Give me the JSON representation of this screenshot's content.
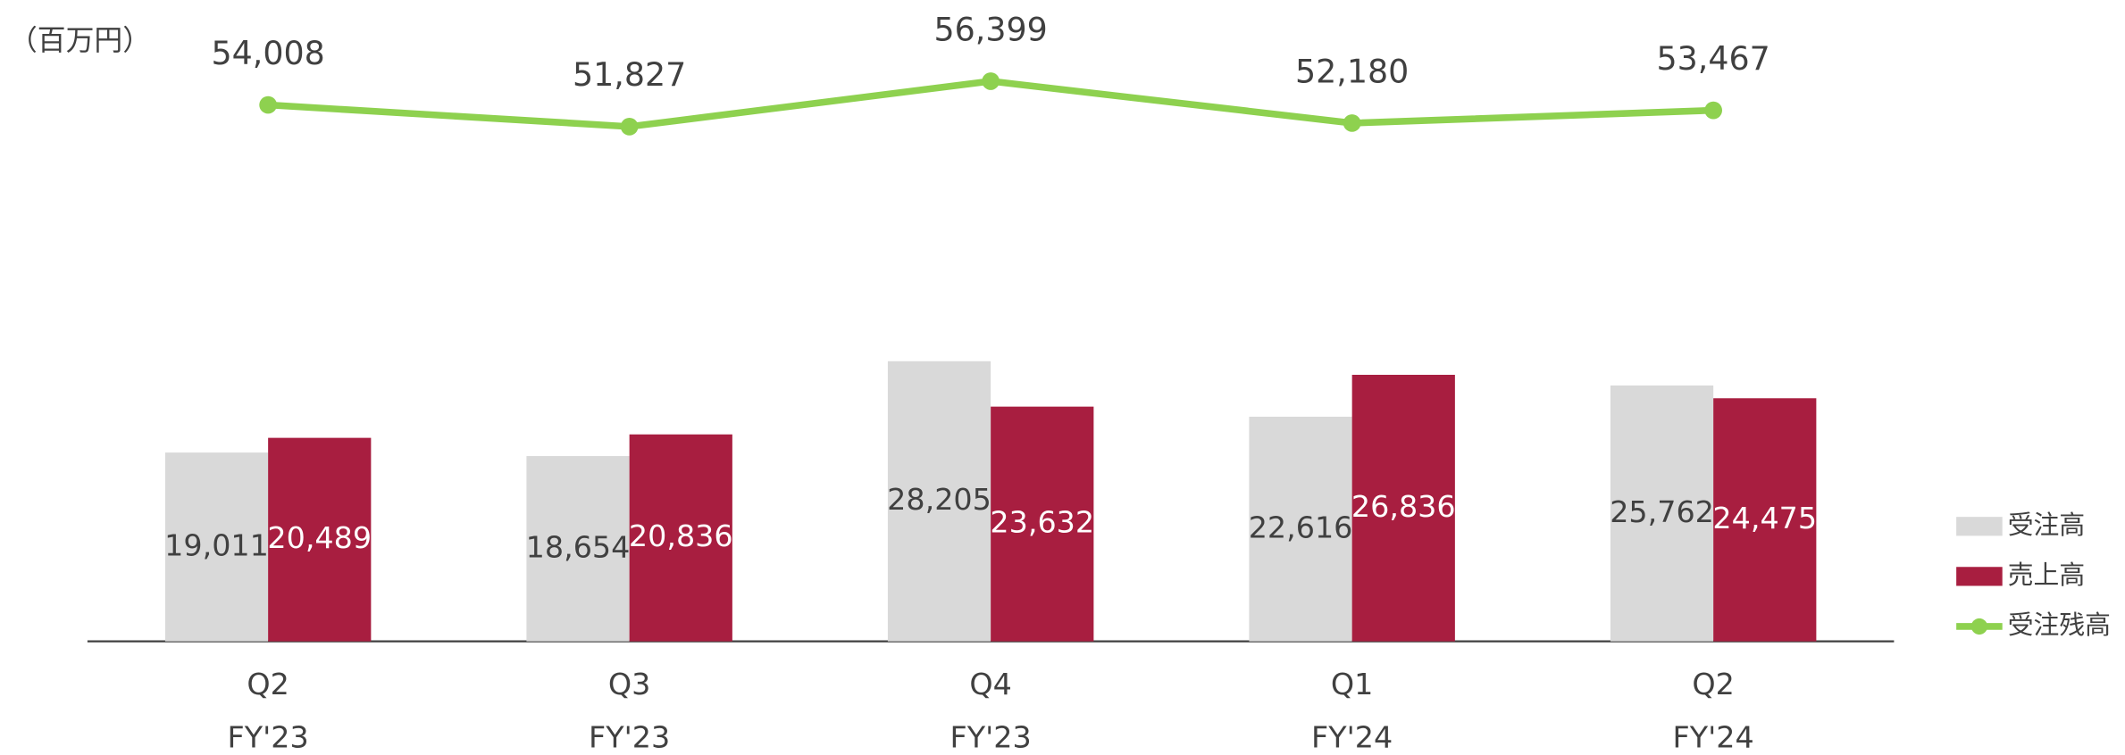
{
  "chart_data": {
    "type": "bar_line",
    "unit_label": "（百万円）",
    "categories": [
      "Q2",
      "Q3",
      "Q4",
      "Q1",
      "Q2"
    ],
    "groups": [
      "FY'23",
      "FY'23",
      "FY'23",
      "FY'24",
      "FY'24"
    ],
    "legend": "bottom-right",
    "series": [
      {
        "name": "受注高",
        "color": "#d9d9d9",
        "kind": "bar",
        "values": [
          19011,
          18654,
          28205,
          22616,
          25762
        ],
        "value_labels": [
          "19,011",
          "18,654",
          "28,205",
          "22,616",
          "25,762"
        ],
        "label_color": "#404040"
      },
      {
        "name": "売上高",
        "color": "#a81e40",
        "kind": "bar",
        "values": [
          20489,
          20836,
          23632,
          26836,
          24475
        ],
        "value_labels": [
          "20,489",
          "20,836",
          "23,632",
          "26,836",
          "24,475"
        ],
        "label_color": "#ffffff"
      },
      {
        "name": "受注残高",
        "color": "#8ed14f",
        "kind": "line",
        "values": [
          54008,
          51827,
          56399,
          52180,
          53467
        ],
        "value_labels": [
          "54,008",
          "51,827",
          "56,399",
          "52,180",
          "53,467"
        ],
        "label_color": "#404040"
      }
    ]
  }
}
